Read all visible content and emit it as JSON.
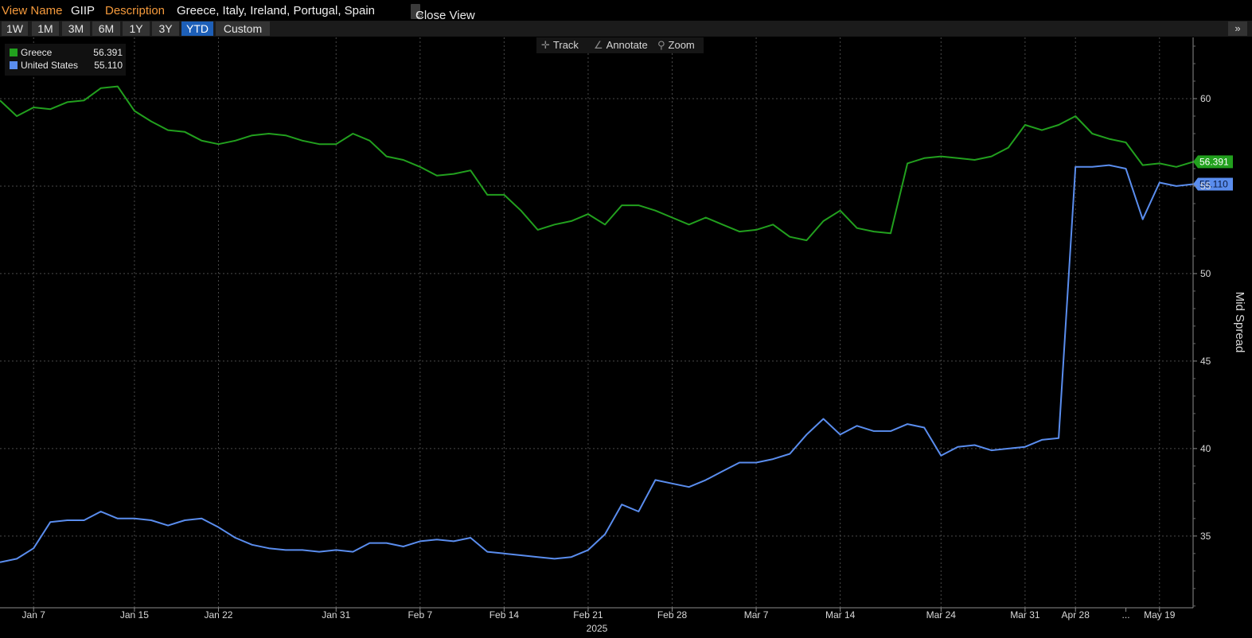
{
  "header": {
    "view_name_label": "View Name",
    "view_name_value": "GIIP",
    "description_label": "Description",
    "description_value": "Greece, Italy, Ireland, Portugal, Spain",
    "close_view_label": "Close View",
    "close_view_icon": "binoculars-icon"
  },
  "range_buttons": [
    "1W",
    "1M",
    "3M",
    "6M",
    "1Y",
    "3Y",
    "YTD",
    "Custom"
  ],
  "active_range": "YTD",
  "expand_label": "»",
  "tools": {
    "track": "Track",
    "annotate": "Annotate",
    "zoom": "Zoom"
  },
  "legend": [
    {
      "name": "Greece",
      "value": "56.391",
      "color": "#22a01e"
    },
    {
      "name": "United States",
      "value": "55.110",
      "color": "#5a8dee"
    }
  ],
  "chart_data": {
    "type": "line",
    "title": "",
    "xlabel": "",
    "ylabel": "Mid Spread",
    "year_label": "2025",
    "ylim": [
      30.9,
      63.5
    ],
    "y_ticks": [
      35,
      40,
      45,
      50,
      55,
      60
    ],
    "x_ticks": [
      "Jan 7",
      "Jan 15",
      "Jan 22",
      "Jan 31",
      "Feb 7",
      "Feb 14",
      "Feb 21",
      "Feb 28",
      "Mar 7",
      "Mar 14",
      "Mar 24",
      "Mar 31",
      "Apr 28",
      "...",
      "May 19"
    ],
    "x_tick_index": [
      2,
      8,
      13,
      20,
      25,
      30,
      35,
      40,
      45,
      50,
      56,
      61,
      64,
      67,
      69
    ],
    "grid": true,
    "series": [
      {
        "name": "Greece",
        "color": "#22a01e",
        "last_value": "56.391",
        "values": [
          59.9,
          59.0,
          59.5,
          59.4,
          59.8,
          59.9,
          60.6,
          60.7,
          59.3,
          58.7,
          58.2,
          58.1,
          57.6,
          57.4,
          57.6,
          57.9,
          58.0,
          57.9,
          57.6,
          57.4,
          57.4,
          58.0,
          57.6,
          56.7,
          56.5,
          56.1,
          55.6,
          55.7,
          55.9,
          54.5,
          54.5,
          53.6,
          52.5,
          52.8,
          53.0,
          53.4,
          52.8,
          53.9,
          53.9,
          53.6,
          53.2,
          52.8,
          53.2,
          52.8,
          52.4,
          52.5,
          52.8,
          52.1,
          51.9,
          53.0,
          53.6,
          52.6,
          52.4,
          52.3,
          56.3,
          56.6,
          56.7,
          56.6,
          56.5,
          56.7,
          57.2,
          58.5,
          58.2,
          58.5,
          59.0,
          58.0,
          57.7,
          57.5,
          56.2,
          56.3,
          56.1,
          56.391
        ]
      },
      {
        "name": "United States",
        "color": "#5a8dee",
        "last_value": "55.110",
        "values": [
          33.5,
          33.7,
          34.3,
          35.8,
          35.9,
          35.9,
          36.4,
          36.0,
          36.0,
          35.9,
          35.6,
          35.9,
          36.0,
          35.5,
          34.9,
          34.5,
          34.3,
          34.2,
          34.2,
          34.1,
          34.2,
          34.1,
          34.6,
          34.6,
          34.4,
          34.7,
          34.8,
          34.7,
          34.9,
          34.1,
          34.0,
          33.9,
          33.8,
          33.7,
          33.8,
          34.2,
          35.1,
          36.8,
          36.4,
          38.2,
          38.0,
          37.8,
          38.2,
          38.7,
          39.2,
          39.2,
          39.4,
          39.7,
          40.8,
          41.7,
          40.8,
          41.3,
          41.0,
          41.0,
          41.4,
          41.2,
          39.6,
          40.1,
          40.2,
          39.9,
          40.0,
          40.1,
          40.5,
          40.6,
          56.1,
          56.1,
          56.2,
          56.0,
          53.1,
          55.2,
          55.0,
          55.11
        ]
      }
    ]
  }
}
